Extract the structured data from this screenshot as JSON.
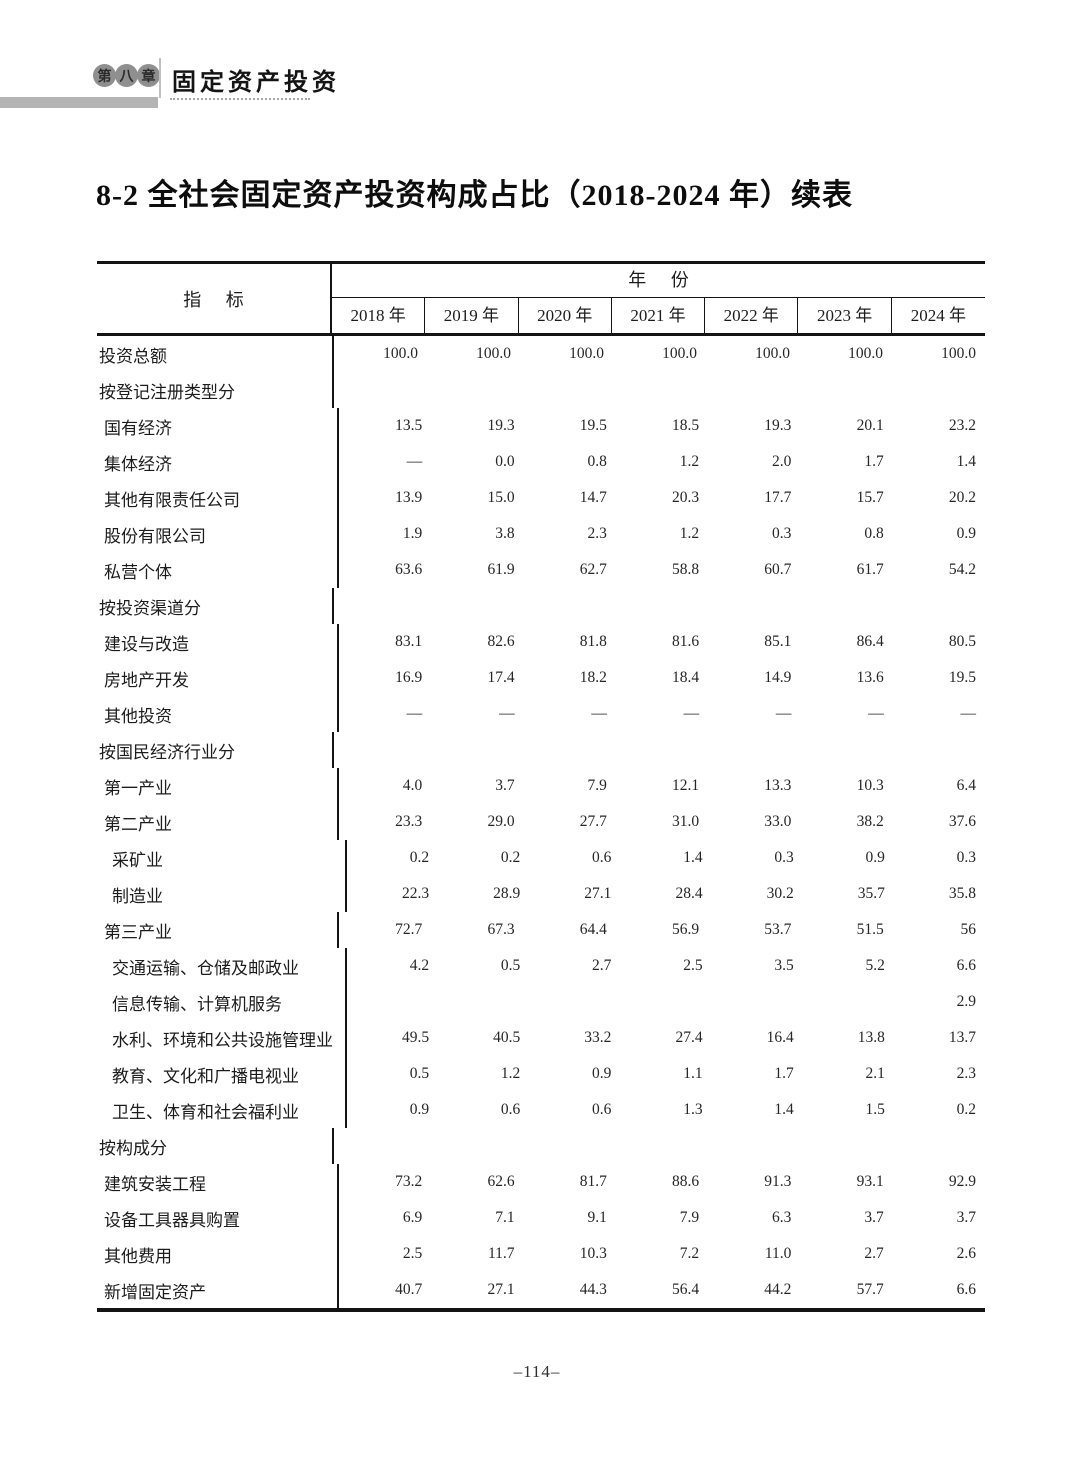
{
  "page": {
    "chapter_badge_characters": [
      "第",
      "八",
      "章"
    ],
    "chapter_title": "固定资产投资",
    "title": "8-2  全社会固定资产投资构成占比（2018-2024 年）续表",
    "footer_page_number": "–114–"
  },
  "table": {
    "indicator_header": "指 标",
    "year_group_header": "年 份",
    "years": [
      "2018 年",
      "2019 年",
      "2020 年",
      "2021 年",
      "2022 年",
      "2023 年",
      "2024 年"
    ],
    "rows": [
      {
        "label": "投资总额",
        "indent": 0,
        "values": [
          "100.0",
          "100.0",
          "100.0",
          "100.0",
          "100.0",
          "100.0",
          "100.0"
        ]
      },
      {
        "label": "按登记注册类型分",
        "indent": 0,
        "values": [
          "",
          "",
          "",
          "",
          "",
          "",
          ""
        ]
      },
      {
        "label": "国有经济",
        "indent": 1,
        "values": [
          "13.5",
          "19.3",
          "19.5",
          "18.5",
          "19.3",
          "20.1",
          "23.2"
        ]
      },
      {
        "label": "集体经济",
        "indent": 1,
        "values": [
          "—",
          "0.0",
          "0.8",
          "1.2",
          "2.0",
          "1.7",
          "1.4"
        ]
      },
      {
        "label": "其他有限责任公司",
        "indent": 1,
        "values": [
          "13.9",
          "15.0",
          "14.7",
          "20.3",
          "17.7",
          "15.7",
          "20.2"
        ]
      },
      {
        "label": "股份有限公司",
        "indent": 1,
        "values": [
          "1.9",
          "3.8",
          "2.3",
          "1.2",
          "0.3",
          "0.8",
          "0.9"
        ]
      },
      {
        "label": "私营个体",
        "indent": 1,
        "values": [
          "63.6",
          "61.9",
          "62.7",
          "58.8",
          "60.7",
          "61.7",
          "54.2"
        ]
      },
      {
        "label": "按投资渠道分",
        "indent": 0,
        "values": [
          "",
          "",
          "",
          "",
          "",
          "",
          ""
        ]
      },
      {
        "label": "建设与改造",
        "indent": 1,
        "values": [
          "83.1",
          "82.6",
          "81.8",
          "81.6",
          "85.1",
          "86.4",
          "80.5"
        ]
      },
      {
        "label": "房地产开发",
        "indent": 1,
        "values": [
          "16.9",
          "17.4",
          "18.2",
          "18.4",
          "14.9",
          "13.6",
          "19.5"
        ]
      },
      {
        "label": "其他投资",
        "indent": 1,
        "values": [
          "—",
          "—",
          "—",
          "—",
          "—",
          "—",
          "—"
        ]
      },
      {
        "label": "按国民经济行业分",
        "indent": 0,
        "values": [
          "",
          "",
          "",
          "",
          "",
          "",
          ""
        ]
      },
      {
        "label": "第一产业",
        "indent": 1,
        "values": [
          "4.0",
          "3.7",
          "7.9",
          "12.1",
          "13.3",
          "10.3",
          "6.4"
        ]
      },
      {
        "label": "第二产业",
        "indent": 1,
        "values": [
          "23.3",
          "29.0",
          "27.7",
          "31.0",
          "33.0",
          "38.2",
          "37.6"
        ]
      },
      {
        "label": "采矿业",
        "indent": 2,
        "values": [
          "0.2",
          "0.2",
          "0.6",
          "1.4",
          "0.3",
          "0.9",
          "0.3"
        ]
      },
      {
        "label": "制造业",
        "indent": 2,
        "values": [
          "22.3",
          "28.9",
          "27.1",
          "28.4",
          "30.2",
          "35.7",
          "35.8"
        ]
      },
      {
        "label": "第三产业",
        "indent": 1,
        "values": [
          "72.7",
          "67.3",
          "64.4",
          "56.9",
          "53.7",
          "51.5",
          "56"
        ]
      },
      {
        "label": "交通运输、仓储及邮政业",
        "indent": 2,
        "values": [
          "4.2",
          "0.5",
          "2.7",
          "2.5",
          "3.5",
          "5.2",
          "6.6"
        ]
      },
      {
        "label": "信息传输、计算机服务",
        "indent": 2,
        "values": [
          "",
          "",
          "",
          "",
          "",
          "",
          "2.9"
        ]
      },
      {
        "label": "水利、环境和公共设施管理业",
        "indent": 2,
        "values": [
          "49.5",
          "40.5",
          "33.2",
          "27.4",
          "16.4",
          "13.8",
          "13.7"
        ]
      },
      {
        "label": "教育、文化和广播电视业",
        "indent": 2,
        "values": [
          "0.5",
          "1.2",
          "0.9",
          "1.1",
          "1.7",
          "2.1",
          "2.3"
        ]
      },
      {
        "label": "卫生、体育和社会福利业",
        "indent": 2,
        "values": [
          "0.9",
          "0.6",
          "0.6",
          "1.3",
          "1.4",
          "1.5",
          "0.2"
        ]
      },
      {
        "label": "按构成分",
        "indent": 0,
        "values": [
          "",
          "",
          "",
          "",
          "",
          "",
          ""
        ]
      },
      {
        "label": "建筑安装工程",
        "indent": 1,
        "values": [
          "73.2",
          "62.6",
          "81.7",
          "88.6",
          "91.3",
          "93.1",
          "92.9"
        ]
      },
      {
        "label": "设备工具器具购置",
        "indent": 1,
        "values": [
          "6.9",
          "7.1",
          "9.1",
          "7.9",
          "6.3",
          "3.7",
          "3.7"
        ]
      },
      {
        "label": "其他费用",
        "indent": 1,
        "values": [
          "2.5",
          "11.7",
          "10.3",
          "7.2",
          "11.0",
          "2.7",
          "2.6"
        ]
      },
      {
        "label": "新增固定资产",
        "indent": 1,
        "values": [
          "40.7",
          "27.1",
          "44.3",
          "56.4",
          "44.2",
          "57.7",
          "6.6"
        ]
      }
    ]
  }
}
